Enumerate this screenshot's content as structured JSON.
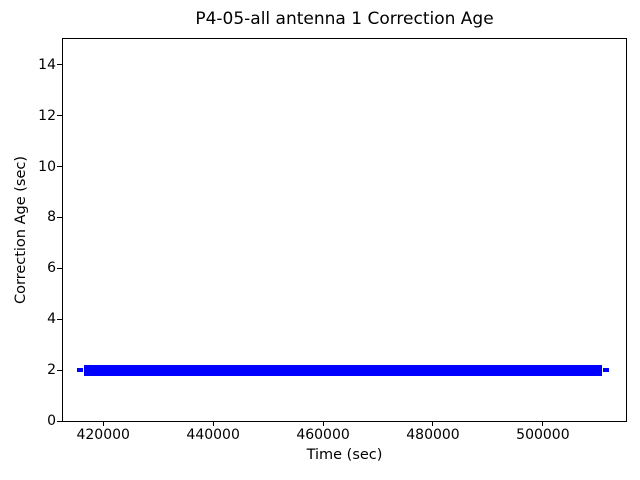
{
  "chart_data": {
    "type": "line",
    "title": "P4-05-all antenna 1 Correction Age",
    "xlabel": "Time (sec)",
    "ylabel": "Correction Age (sec)",
    "xlim": [
      412500,
      515300
    ],
    "ylim": [
      0,
      15.05
    ],
    "grid": false,
    "legend": null,
    "xticks": [
      {
        "value": 420000,
        "label": "420000"
      },
      {
        "value": 440000,
        "label": "440000"
      },
      {
        "value": 460000,
        "label": "460000"
      },
      {
        "value": 480000,
        "label": "480000"
      },
      {
        "value": 500000,
        "label": "500000"
      }
    ],
    "yticks": [
      {
        "value": 0,
        "label": "0"
      },
      {
        "value": 2,
        "label": "2"
      },
      {
        "value": 4,
        "label": "4"
      },
      {
        "value": 6,
        "label": "6"
      },
      {
        "value": 8,
        "label": "8"
      },
      {
        "value": 10,
        "label": "10"
      },
      {
        "value": 12,
        "label": "12"
      },
      {
        "value": 14,
        "label": "14"
      }
    ],
    "series": [
      {
        "name": "correction-age",
        "color": "#0000ff",
        "description": "Correction age constant at 2 sec over dense samples",
        "constant_y": 2,
        "x_start": 416500,
        "x_end": 510700,
        "band_thickness_px": 11,
        "endpoint_markers": [
          {
            "x": 415800,
            "y": 2
          },
          {
            "x": 511500,
            "y": 2
          }
        ]
      }
    ],
    "colors": {
      "axes": "#000000",
      "text": "#000000",
      "background": "#ffffff",
      "series": "#0000ff"
    }
  }
}
